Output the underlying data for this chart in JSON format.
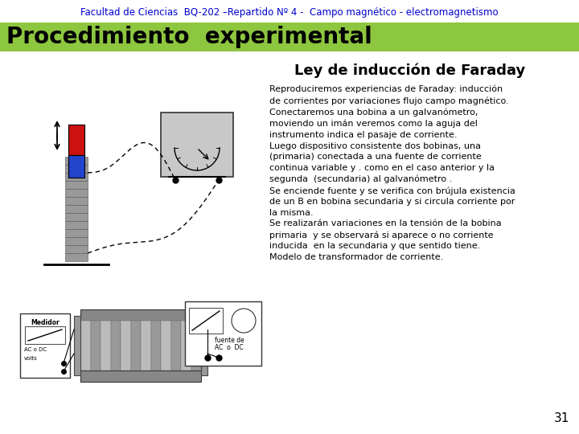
{
  "header_text": "Facultad de Ciencias  BQ-202 –Repartido Nº 4 -  Campo magnético - electromagnetismo",
  "header_color": "#0000cc",
  "header_fontsize": 8.5,
  "banner_text": "Procedimiento  experimental",
  "banner_bg": "#8dc63f",
  "banner_text_color": "#000000",
  "banner_fontsize": 20,
  "section_title": "Ley de inducción de Faraday",
  "section_title_fontsize": 13,
  "body_text": "Reproduciremos experiencias de Faraday: inducción\nde corrientes por variaciones flujo campo magnético.\nConectaremos una bobina a un galvanómetro,\nmoviendo un imán veremos como la aguja del\ninstrumento indica el pasaje de corriente.\nLuego dispositivo consistente dos bobinas, una\n(primaria) conectada a una fuente de corriente\ncontinua variable y . como en el caso anterior y la\nsegunda  (secundaria) al galvanómetro .\nSe enciende fuente y se verifica con brújula existencia\nde un B en bobina secundaria y si circula corriente por\nla misma.\nSe realizarán variaciones en la tensión de la bobina\nprimaria  y se observará si aparece o no corriente\ninducida  en la secundaria y que sentido tiene.\nModelo de transformador de corriente.",
  "body_fontsize": 8.0,
  "page_number": "31",
  "bg_color": "#ffffff"
}
